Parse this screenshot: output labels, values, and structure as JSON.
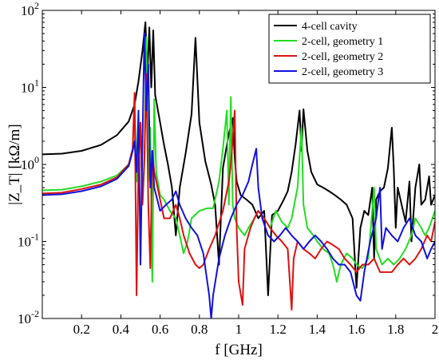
{
  "chart_data": {
    "type": "line",
    "xlabel": "f [GHz]",
    "ylabel": "|Z_T| [kΩ/m]",
    "xlim": [
      0,
      2
    ],
    "ylim": [
      0.01,
      100
    ],
    "yscale": "log",
    "grid": false,
    "legend_position": "top-right",
    "x_ticks": [
      {
        "v": 0.2,
        "label": "0.2"
      },
      {
        "v": 0.4,
        "label": "0.4"
      },
      {
        "v": 0.6,
        "label": "0.6"
      },
      {
        "v": 0.8,
        "label": "0.8"
      },
      {
        "v": 1.0,
        "label": "1"
      },
      {
        "v": 1.2,
        "label": "1.2"
      },
      {
        "v": 1.4,
        "label": "1.4"
      },
      {
        "v": 1.6,
        "label": "1.6"
      },
      {
        "v": 1.8,
        "label": "1.8"
      },
      {
        "v": 2.0,
        "label": "2"
      }
    ],
    "y_ticks": [
      {
        "v": 0.01,
        "base": "10",
        "exp": "-2"
      },
      {
        "v": 0.1,
        "base": "10",
        "exp": "-1"
      },
      {
        "v": 1,
        "base": "10",
        "exp": "0"
      },
      {
        "v": 10,
        "base": "10",
        "exp": "1"
      },
      {
        "v": 100,
        "base": "10",
        "exp": "2"
      }
    ],
    "series": [
      {
        "name": "4-cell cavity",
        "color": "#000000",
        "points": [
          [
            0.0,
            1.35
          ],
          [
            0.1,
            1.38
          ],
          [
            0.2,
            1.5
          ],
          [
            0.3,
            1.8
          ],
          [
            0.38,
            2.4
          ],
          [
            0.44,
            3.6
          ],
          [
            0.47,
            6.0
          ],
          [
            0.49,
            12
          ],
          [
            0.51,
            30
          ],
          [
            0.525,
            70
          ],
          [
            0.535,
            15
          ],
          [
            0.545,
            60
          ],
          [
            0.555,
            10
          ],
          [
            0.565,
            55
          ],
          [
            0.575,
            8
          ],
          [
            0.6,
            3.5
          ],
          [
            0.62,
            1.8
          ],
          [
            0.64,
            1.0
          ],
          [
            0.66,
            0.5
          ],
          [
            0.68,
            0.12
          ],
          [
            0.7,
            0.5
          ],
          [
            0.73,
            1.4
          ],
          [
            0.76,
            4.5
          ],
          [
            0.78,
            44
          ],
          [
            0.8,
            3.5
          ],
          [
            0.83,
            1.1
          ],
          [
            0.86,
            0.55
          ],
          [
            0.88,
            0.3
          ],
          [
            0.9,
            0.05
          ],
          [
            0.92,
            0.9
          ],
          [
            0.95,
            2.5
          ],
          [
            0.97,
            4.0
          ],
          [
            0.98,
            1.2
          ],
          [
            0.99,
            0.6
          ],
          [
            1.01,
            0.4
          ],
          [
            1.04,
            0.35
          ],
          [
            1.07,
            0.3
          ],
          [
            1.1,
            0.2
          ],
          [
            1.13,
            0.25
          ],
          [
            1.15,
            0.02
          ],
          [
            1.17,
            0.22
          ],
          [
            1.2,
            0.25
          ],
          [
            1.23,
            0.35
          ],
          [
            1.25,
            0.45
          ],
          [
            1.27,
            0.8
          ],
          [
            1.29,
            1.8
          ],
          [
            1.31,
            5.0
          ],
          [
            1.32,
            1.5
          ],
          [
            1.33,
            5.2
          ],
          [
            1.35,
            1.5
          ],
          [
            1.37,
            0.8
          ],
          [
            1.4,
            0.55
          ],
          [
            1.43,
            0.5
          ],
          [
            1.46,
            0.45
          ],
          [
            1.49,
            0.4
          ],
          [
            1.52,
            0.35
          ],
          [
            1.55,
            0.3
          ],
          [
            1.58,
            0.2
          ],
          [
            1.6,
            0.025
          ],
          [
            1.62,
            0.15
          ],
          [
            1.64,
            0.25
          ],
          [
            1.66,
            0.22
          ],
          [
            1.68,
            0.5
          ],
          [
            1.69,
            0.06
          ],
          [
            1.7,
            0.35
          ],
          [
            1.72,
            0.45
          ],
          [
            1.74,
            0.5
          ],
          [
            1.76,
            0.9
          ],
          [
            1.78,
            3.0
          ],
          [
            1.79,
            0.9
          ],
          [
            1.8,
            0.15
          ],
          [
            1.81,
            0.5
          ],
          [
            1.83,
            0.3
          ],
          [
            1.85,
            0.18
          ],
          [
            1.87,
            0.6
          ],
          [
            1.88,
            0.1
          ],
          [
            1.9,
            0.5
          ],
          [
            1.92,
            1.0
          ],
          [
            1.93,
            0.3
          ],
          [
            1.95,
            0.35
          ],
          [
            1.97,
            0.7
          ],
          [
            1.98,
            0.3
          ],
          [
            2.0,
            0.4
          ]
        ]
      },
      {
        "name": "2-cell, geometry 1",
        "color": "#22dd22",
        "points": [
          [
            0.0,
            0.46
          ],
          [
            0.1,
            0.47
          ],
          [
            0.2,
            0.52
          ],
          [
            0.3,
            0.6
          ],
          [
            0.38,
            0.72
          ],
          [
            0.44,
            1.0
          ],
          [
            0.46,
            1.5
          ],
          [
            0.47,
            7.0
          ],
          [
            0.48,
            0.6
          ],
          [
            0.49,
            1.5
          ],
          [
            0.5,
            3.5
          ],
          [
            0.51,
            0.3
          ],
          [
            0.52,
            1.0
          ],
          [
            0.53,
            45
          ],
          [
            0.54,
            0.6
          ],
          [
            0.55,
            3.0
          ],
          [
            0.56,
            0.03
          ],
          [
            0.57,
            7.0
          ],
          [
            0.58,
            0.8
          ],
          [
            0.6,
            0.4
          ],
          [
            0.62,
            0.35
          ],
          [
            0.65,
            0.25
          ],
          [
            0.68,
            0.2
          ],
          [
            0.7,
            0.12
          ],
          [
            0.72,
            0.07
          ],
          [
            0.74,
            0.1
          ],
          [
            0.76,
            0.2
          ],
          [
            0.8,
            0.25
          ],
          [
            0.84,
            0.27
          ],
          [
            0.87,
            0.27
          ],
          [
            0.9,
            0.6
          ],
          [
            0.92,
            1.6
          ],
          [
            0.94,
            5.0
          ],
          [
            0.95,
            0.3
          ],
          [
            0.96,
            7.5
          ],
          [
            0.97,
            0.3
          ],
          [
            0.98,
            0.2
          ],
          [
            1.0,
            0.15
          ],
          [
            1.03,
            0.12
          ],
          [
            1.05,
            0.15
          ],
          [
            1.08,
            0.2
          ],
          [
            1.1,
            0.25
          ],
          [
            1.13,
            0.2
          ],
          [
            1.16,
            0.15
          ],
          [
            1.19,
            0.25
          ],
          [
            1.22,
            0.18
          ],
          [
            1.25,
            0.15
          ],
          [
            1.27,
            0.2
          ],
          [
            1.3,
            0.5
          ],
          [
            1.32,
            3.0
          ],
          [
            1.33,
            0.3
          ],
          [
            1.35,
            0.15
          ],
          [
            1.38,
            0.12
          ],
          [
            1.4,
            0.1
          ],
          [
            1.43,
            0.08
          ],
          [
            1.46,
            0.07
          ],
          [
            1.48,
            0.05
          ],
          [
            1.5,
            0.03
          ],
          [
            1.52,
            0.05
          ],
          [
            1.55,
            0.07
          ],
          [
            1.58,
            0.06
          ],
          [
            1.6,
            0.05
          ],
          [
            1.63,
            0.045
          ],
          [
            1.66,
            0.06
          ],
          [
            1.69,
            0.5
          ],
          [
            1.7,
            0.08
          ],
          [
            1.73,
            0.05
          ],
          [
            1.76,
            0.06
          ],
          [
            1.79,
            0.05
          ],
          [
            1.82,
            0.06
          ],
          [
            1.85,
            0.08
          ],
          [
            1.88,
            0.12
          ],
          [
            1.9,
            0.2
          ],
          [
            1.93,
            0.15
          ],
          [
            1.95,
            0.12
          ],
          [
            1.97,
            0.15
          ],
          [
            2.0,
            0.25
          ]
        ]
      },
      {
        "name": "2-cell, geometry 2",
        "color": "#dd1111",
        "points": [
          [
            0.0,
            0.42
          ],
          [
            0.1,
            0.43
          ],
          [
            0.2,
            0.48
          ],
          [
            0.3,
            0.55
          ],
          [
            0.38,
            0.68
          ],
          [
            0.44,
            1.0
          ],
          [
            0.46,
            1.6
          ],
          [
            0.47,
            8.5
          ],
          [
            0.48,
            0.02
          ],
          [
            0.49,
            1.0
          ],
          [
            0.5,
            3.5
          ],
          [
            0.51,
            0.3
          ],
          [
            0.52,
            1.2
          ],
          [
            0.53,
            15
          ],
          [
            0.54,
            0.3
          ],
          [
            0.55,
            0.045
          ],
          [
            0.56,
            1.5
          ],
          [
            0.57,
            0.8
          ],
          [
            0.6,
            0.35
          ],
          [
            0.62,
            0.2
          ],
          [
            0.65,
            0.2
          ],
          [
            0.68,
            0.3
          ],
          [
            0.7,
            0.2
          ],
          [
            0.72,
            0.12
          ],
          [
            0.75,
            0.07
          ],
          [
            0.78,
            0.05
          ],
          [
            0.8,
            0.045
          ],
          [
            0.82,
            0.05
          ],
          [
            0.85,
            0.08
          ],
          [
            0.88,
            0.12
          ],
          [
            0.92,
            0.25
          ],
          [
            0.95,
            0.6
          ],
          [
            0.96,
            1.0
          ],
          [
            0.98,
            5.0
          ],
          [
            0.99,
            0.15
          ],
          [
            1.0,
            0.03
          ],
          [
            1.02,
            0.015
          ],
          [
            1.03,
            0.08
          ],
          [
            1.06,
            0.15
          ],
          [
            1.08,
            0.2
          ],
          [
            1.1,
            0.25
          ],
          [
            1.13,
            0.2
          ],
          [
            1.16,
            0.15
          ],
          [
            1.19,
            0.12
          ],
          [
            1.22,
            0.1
          ],
          [
            1.25,
            0.08
          ],
          [
            1.27,
            0.013
          ],
          [
            1.28,
            0.06
          ],
          [
            1.3,
            0.1
          ],
          [
            1.33,
            0.08
          ],
          [
            1.36,
            0.07
          ],
          [
            1.39,
            0.06
          ],
          [
            1.42,
            0.08
          ],
          [
            1.45,
            0.1
          ],
          [
            1.48,
            0.09
          ],
          [
            1.51,
            0.08
          ],
          [
            1.54,
            0.06
          ],
          [
            1.57,
            0.05
          ],
          [
            1.6,
            0.04
          ],
          [
            1.63,
            0.05
          ],
          [
            1.66,
            0.05
          ],
          [
            1.69,
            0.06
          ],
          [
            1.72,
            0.04
          ],
          [
            1.75,
            0.04
          ],
          [
            1.78,
            0.04
          ],
          [
            1.81,
            0.05
          ],
          [
            1.84,
            0.06
          ],
          [
            1.87,
            0.05
          ],
          [
            1.9,
            0.06
          ],
          [
            1.93,
            0.08
          ],
          [
            1.96,
            0.12
          ],
          [
            1.98,
            0.1
          ],
          [
            2.0,
            0.18
          ]
        ]
      },
      {
        "name": "2-cell, geometry 3",
        "color": "#1111dd",
        "points": [
          [
            0.0,
            0.4
          ],
          [
            0.1,
            0.41
          ],
          [
            0.2,
            0.45
          ],
          [
            0.3,
            0.52
          ],
          [
            0.38,
            0.65
          ],
          [
            0.44,
            0.95
          ],
          [
            0.46,
            1.5
          ],
          [
            0.47,
            2.0
          ],
          [
            0.48,
            0.8
          ],
          [
            0.49,
            5.0
          ],
          [
            0.5,
            0.05
          ],
          [
            0.51,
            2.0
          ],
          [
            0.52,
            50
          ],
          [
            0.53,
            5.0
          ],
          [
            0.54,
            20
          ],
          [
            0.55,
            0.5
          ],
          [
            0.56,
            1.5
          ],
          [
            0.57,
            0.5
          ],
          [
            0.6,
            0.25
          ],
          [
            0.63,
            0.3
          ],
          [
            0.66,
            0.35
          ],
          [
            0.68,
            0.45
          ],
          [
            0.7,
            0.3
          ],
          [
            0.73,
            0.2
          ],
          [
            0.76,
            0.15
          ],
          [
            0.79,
            0.12
          ],
          [
            0.82,
            0.07
          ],
          [
            0.85,
            0.02
          ],
          [
            0.86,
            0.01
          ],
          [
            0.87,
            0.02
          ],
          [
            0.9,
            0.06
          ],
          [
            0.93,
            0.12
          ],
          [
            0.96,
            0.2
          ],
          [
            0.99,
            0.3
          ],
          [
            1.02,
            0.4
          ],
          [
            1.05,
            0.6
          ],
          [
            1.07,
            1.0
          ],
          [
            1.09,
            1.6
          ],
          [
            1.1,
            0.5
          ],
          [
            1.12,
            0.2
          ],
          [
            1.15,
            0.12
          ],
          [
            1.18,
            0.1
          ],
          [
            1.21,
            0.12
          ],
          [
            1.24,
            0.15
          ],
          [
            1.27,
            0.12
          ],
          [
            1.3,
            0.1
          ],
          [
            1.33,
            0.08
          ],
          [
            1.36,
            0.1
          ],
          [
            1.39,
            0.12
          ],
          [
            1.42,
            0.1
          ],
          [
            1.45,
            0.08
          ],
          [
            1.48,
            0.06
          ],
          [
            1.51,
            0.05
          ],
          [
            1.54,
            0.05
          ],
          [
            1.57,
            0.04
          ],
          [
            1.6,
            0.02
          ],
          [
            1.62,
            0.017
          ],
          [
            1.64,
            0.04
          ],
          [
            1.67,
            0.1
          ],
          [
            1.7,
            0.2
          ],
          [
            1.72,
            0.5
          ],
          [
            1.73,
            0.08
          ],
          [
            1.75,
            0.15
          ],
          [
            1.78,
            0.12
          ],
          [
            1.81,
            0.1
          ],
          [
            1.84,
            0.15
          ],
          [
            1.87,
            0.2
          ],
          [
            1.9,
            0.12
          ],
          [
            1.93,
            0.1
          ],
          [
            1.96,
            0.06
          ],
          [
            1.98,
            0.08
          ],
          [
            2.0,
            0.1
          ]
        ]
      }
    ]
  }
}
